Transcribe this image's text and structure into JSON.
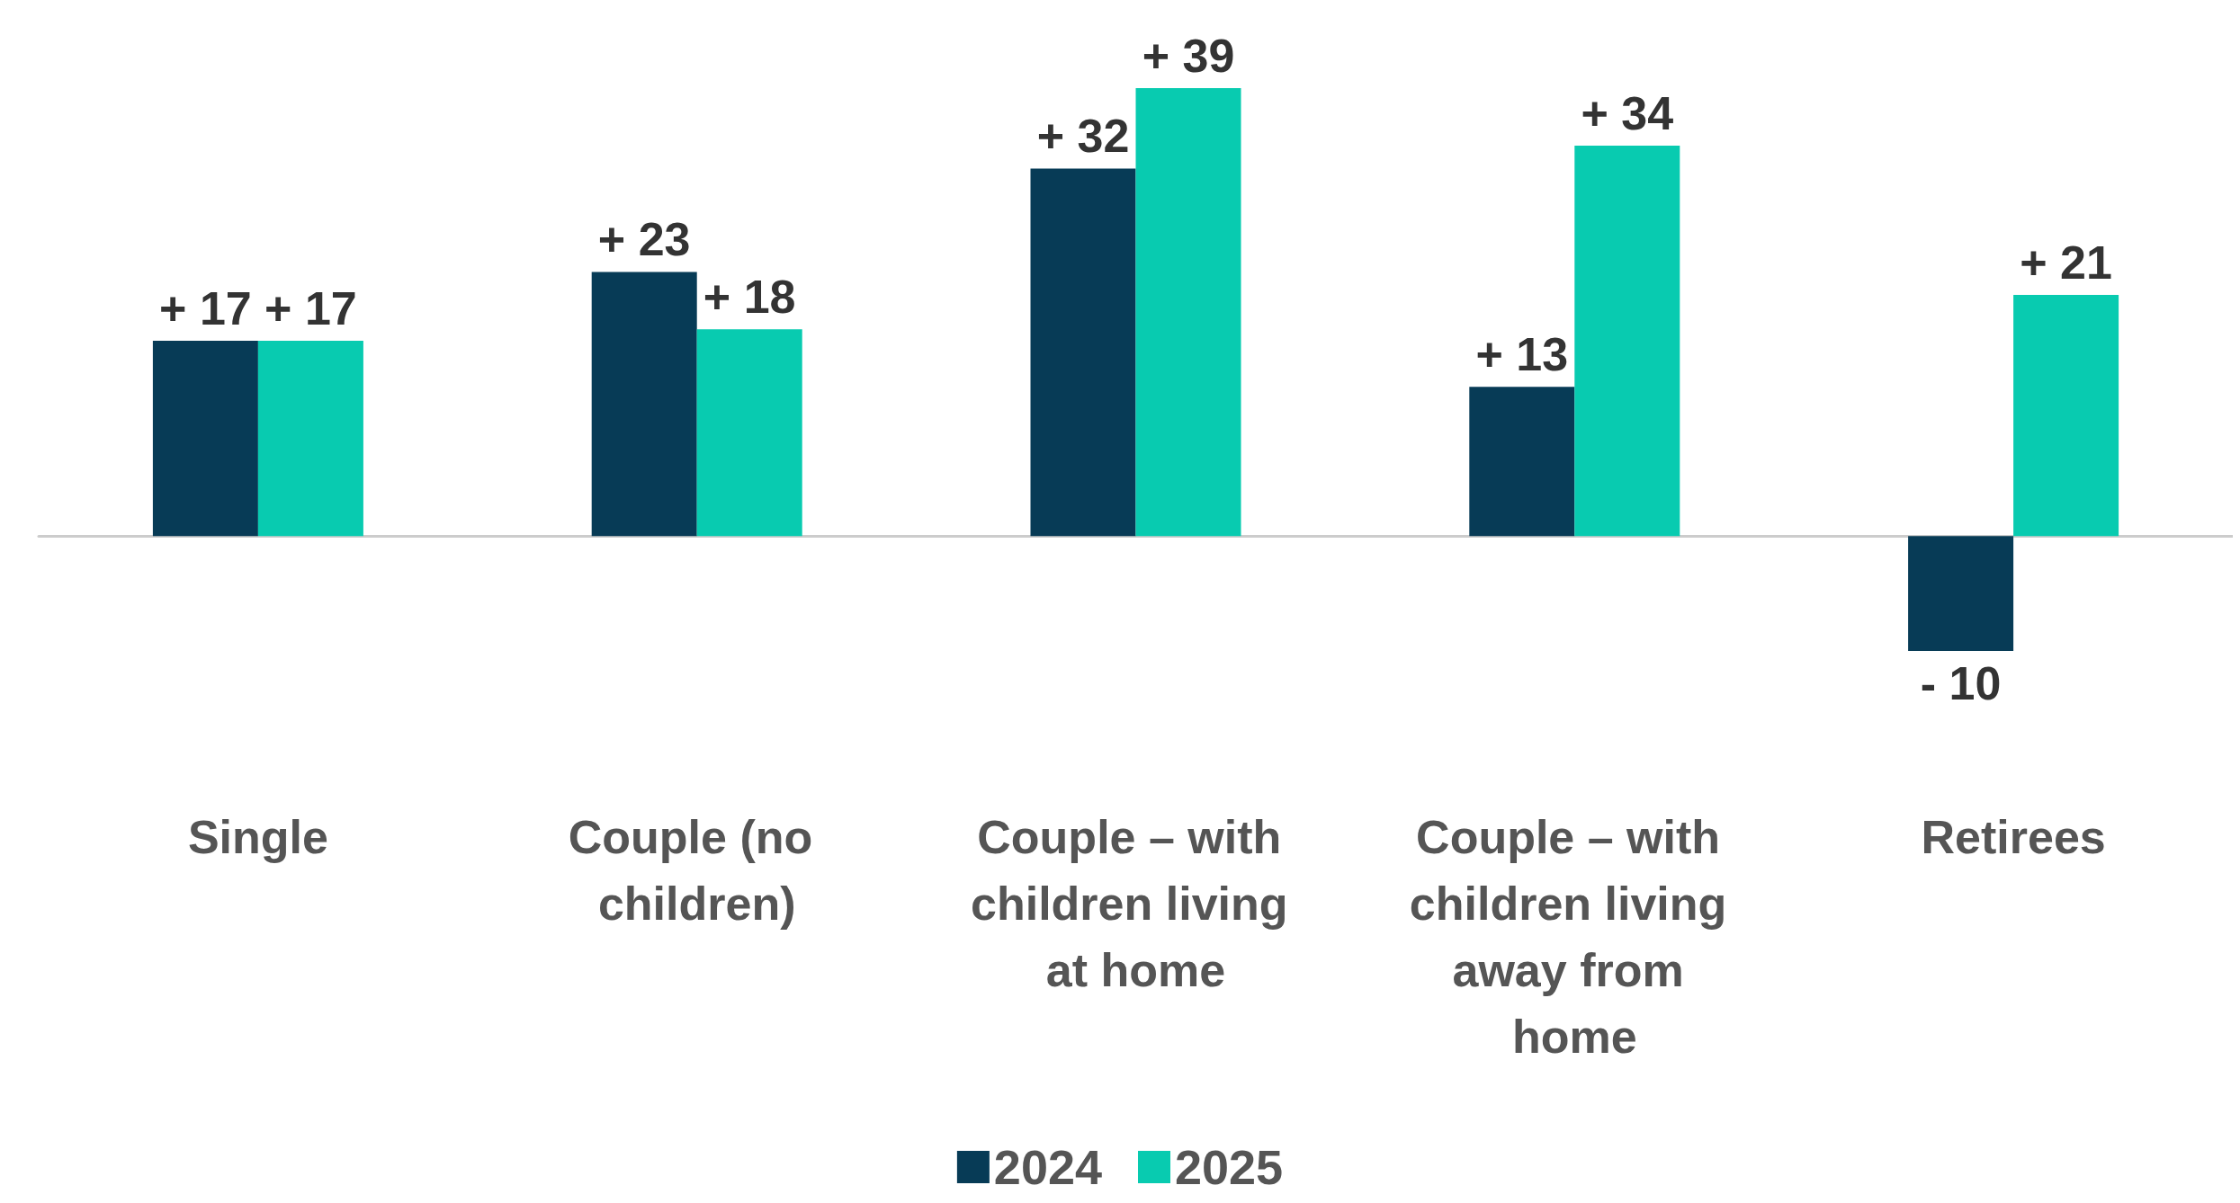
{
  "chart_data": {
    "type": "bar",
    "categories": [
      "Single",
      "Couple (no children)",
      "Couple – with children living at home",
      "Couple – with children living away from home",
      "Retirees"
    ],
    "series": [
      {
        "name": "2024",
        "color": "#073b56",
        "values": [
          17,
          23,
          32,
          13,
          -10
        ],
        "value_labels": [
          "+ 17",
          "+ 23",
          "+ 32",
          "+ 13",
          "- 10"
        ]
      },
      {
        "name": "2025",
        "color": "#08cbb0",
        "values": [
          17,
          18,
          39,
          34,
          21
        ],
        "value_labels": [
          "+ 17",
          "+ 18",
          "+ 39",
          "+ 34",
          "+ 21"
        ]
      }
    ],
    "legend": "bottom"
  }
}
